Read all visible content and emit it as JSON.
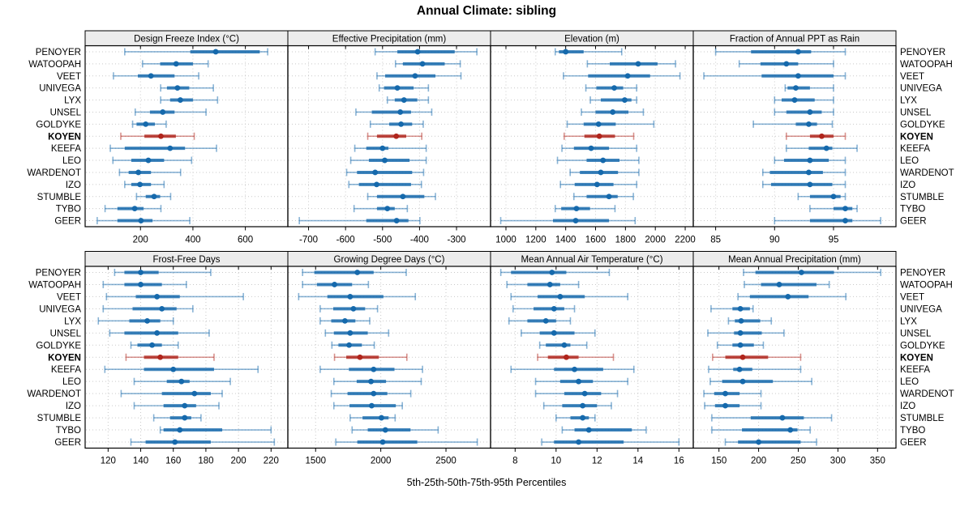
{
  "title": "Annual Climate: sibling",
  "footer": "5th-25th-50th-75th-95th Percentiles",
  "colors": {
    "normal": "#1569ac",
    "highlight": "#b0251c",
    "strip_bg": "#ececec",
    "grid": "#c9c9c9",
    "border": "#000000"
  },
  "chart_data": {
    "type": "dotplot",
    "title": "Annual Climate: sibling",
    "xlabel": "5th-25th-50th-75th-95th Percentiles",
    "percentile_labels": [
      "5th",
      "25th",
      "50th",
      "75th",
      "95th"
    ],
    "legend_position": "none",
    "grid": "dotted",
    "rows": [
      "PENOYER",
      "WATOOPAH",
      "VEET",
      "UNIVEGA",
      "LYX",
      "UNSEL",
      "GOLDYKE",
      "KOYEN",
      "KEEFA",
      "LEO",
      "WARDENOT",
      "IZO",
      "STUMBLE",
      "TYBO",
      "GEER"
    ],
    "highlight_row": "KOYEN",
    "panels": [
      {
        "title": "Design Freeze Index (°C)",
        "grid_row": 0,
        "grid_col": 0,
        "xlim": [
          -11,
          762
        ],
        "ticks": [
          200,
          400,
          600
        ],
        "series": [
          [
            140,
            390,
            487,
            655,
            685
          ],
          [
            208,
            275,
            336,
            400,
            458
          ],
          [
            97,
            190,
            240,
            330,
            422
          ],
          [
            277,
            301,
            341,
            386,
            478
          ],
          [
            277,
            313,
            352,
            400,
            494
          ],
          [
            180,
            236,
            285,
            330,
            450
          ],
          [
            170,
            185,
            220,
            255,
            298
          ],
          [
            125,
            215,
            278,
            335,
            405
          ],
          [
            85,
            140,
            313,
            370,
            490
          ],
          [
            95,
            165,
            230,
            290,
            395
          ],
          [
            120,
            155,
            192,
            240,
            353
          ],
          [
            140,
            165,
            198,
            240,
            290
          ],
          [
            185,
            220,
            252,
            275,
            315
          ],
          [
            65,
            112,
            178,
            212,
            278
          ],
          [
            35,
            112,
            202,
            246,
            388
          ]
        ]
      },
      {
        "title": "Effective Precipitation (mm)",
        "grid_row": 0,
        "grid_col": 1,
        "xlim": [
          -756,
          -208
        ],
        "ticks": [
          -700,
          -600,
          -500,
          -400,
          -300
        ],
        "series": [
          [
            -520,
            -460,
            -405,
            -305,
            -245
          ],
          [
            -465,
            -445,
            -392,
            -332,
            -290
          ],
          [
            -515,
            -493,
            -412,
            -357,
            -288
          ],
          [
            -509,
            -496,
            -460,
            -416,
            -376
          ],
          [
            -487,
            -467,
            -442,
            -406,
            -376
          ],
          [
            -572,
            -529,
            -452,
            -423,
            -367
          ],
          [
            -533,
            -482,
            -450,
            -420,
            -390
          ],
          [
            -540,
            -515,
            -463,
            -436,
            -394
          ],
          [
            -575,
            -544,
            -500,
            -484,
            -382
          ],
          [
            -586,
            -537,
            -494,
            -427,
            -382
          ],
          [
            -597,
            -569,
            -520,
            -420,
            -389
          ],
          [
            -591,
            -564,
            -516,
            -423,
            -395
          ],
          [
            -540,
            -515,
            -445,
            -387,
            -357
          ],
          [
            -577,
            -515,
            -487,
            -467,
            -433
          ],
          [
            -725,
            -544,
            -462,
            -430,
            -399
          ]
        ]
      },
      {
        "title": "Elevation (m)",
        "grid_row": 0,
        "grid_col": 2,
        "xlim": [
          897,
          2254
        ],
        "ticks": [
          1000,
          1200,
          1400,
          1600,
          1800,
          2000,
          2200
        ],
        "series": [
          [
            1330,
            1355,
            1400,
            1520,
            1775
          ],
          [
            1545,
            1695,
            1885,
            2015,
            2135
          ],
          [
            1385,
            1550,
            1815,
            1965,
            2165
          ],
          [
            1535,
            1605,
            1725,
            1785,
            1875
          ],
          [
            1565,
            1635,
            1795,
            1840,
            1875
          ],
          [
            1505,
            1600,
            1715,
            1820,
            1920
          ],
          [
            1410,
            1520,
            1620,
            1735,
            1990
          ],
          [
            1390,
            1525,
            1625,
            1730,
            1855
          ],
          [
            1375,
            1455,
            1570,
            1690,
            1875
          ],
          [
            1345,
            1540,
            1650,
            1760,
            1890
          ],
          [
            1430,
            1495,
            1635,
            1750,
            1890
          ],
          [
            1365,
            1460,
            1610,
            1720,
            1875
          ],
          [
            1455,
            1540,
            1690,
            1748,
            1853
          ],
          [
            1330,
            1370,
            1472,
            1563,
            1730
          ],
          [
            965,
            1315,
            1467,
            1690,
            1865
          ]
        ]
      },
      {
        "title": "Fraction of Annual PPT as Rain",
        "grid_row": 0,
        "grid_col": 3,
        "xlim": [
          83.1,
          100.3
        ],
        "ticks": [
          85,
          90,
          95
        ],
        "series": [
          [
            85.0,
            88.0,
            92.0,
            93.1,
            96.0
          ],
          [
            87.0,
            88.8,
            91.0,
            92.0,
            95.0
          ],
          [
            84.0,
            88.9,
            92.0,
            95.0,
            96.0
          ],
          [
            90.9,
            91.1,
            91.8,
            93.0,
            95.0
          ],
          [
            90.0,
            90.6,
            91.7,
            93.4,
            95.0
          ],
          [
            90.0,
            91.0,
            93.0,
            94.0,
            95.0
          ],
          [
            88.2,
            91.8,
            92.9,
            93.6,
            94.9
          ],
          [
            91.0,
            93.0,
            94.0,
            95.0,
            96.0
          ],
          [
            91.0,
            92.9,
            94.4,
            94.9,
            97.0
          ],
          [
            90.0,
            90.8,
            93.0,
            94.6,
            96.0
          ],
          [
            89.0,
            89.6,
            92.9,
            94.1,
            96.0
          ],
          [
            89.0,
            89.7,
            93.0,
            94.9,
            96.0
          ],
          [
            92.0,
            93.0,
            95.0,
            95.6,
            96.0
          ],
          [
            93.0,
            95.0,
            96.0,
            96.6,
            97.0
          ],
          [
            90.0,
            93.0,
            96.0,
            96.6,
            99.0
          ]
        ]
      },
      {
        "title": "Frost-Free Days",
        "grid_row": 1,
        "grid_col": 0,
        "xlim": [
          105.9,
          230.3
        ],
        "ticks": [
          120,
          140,
          160,
          180,
          200,
          220
        ],
        "series": [
          [
            124,
            130,
            140,
            151,
            183
          ],
          [
            117,
            130,
            140,
            153,
            168
          ],
          [
            119,
            137,
            150,
            164,
            203
          ],
          [
            117,
            135,
            153,
            162,
            172
          ],
          [
            114,
            133,
            144,
            152,
            160
          ],
          [
            121,
            130,
            150,
            163,
            182
          ],
          [
            134,
            138,
            147,
            153,
            163
          ],
          [
            131,
            142,
            152,
            163,
            185
          ],
          [
            118,
            142,
            160,
            185,
            212
          ],
          [
            136,
            156,
            165,
            170,
            195
          ],
          [
            128,
            153,
            173,
            183,
            190
          ],
          [
            136,
            154,
            167,
            174,
            188
          ],
          [
            148,
            158,
            167,
            171,
            177
          ],
          [
            152,
            154,
            164,
            190,
            220
          ],
          [
            134,
            143,
            161,
            183,
            222
          ]
        ]
      },
      {
        "title": "Growing Degree Days (°C)",
        "grid_row": 1,
        "grid_col": 1,
        "xlim": [
          1287,
          2842
        ],
        "ticks": [
          1500,
          2000,
          2500
        ],
        "series": [
          [
            1400,
            1490,
            1820,
            1945,
            2195
          ],
          [
            1400,
            1510,
            1645,
            1780,
            1905
          ],
          [
            1370,
            1590,
            1765,
            2020,
            2265
          ],
          [
            1535,
            1635,
            1790,
            1880,
            1975
          ],
          [
            1535,
            1620,
            1725,
            1805,
            1915
          ],
          [
            1575,
            1640,
            1765,
            1900,
            2060
          ],
          [
            1625,
            1675,
            1757,
            1855,
            1950
          ],
          [
            1645,
            1735,
            1840,
            1985,
            2200
          ],
          [
            1535,
            1755,
            1945,
            2105,
            2320
          ],
          [
            1640,
            1815,
            1925,
            2040,
            2310
          ],
          [
            1620,
            1745,
            1945,
            2050,
            2230
          ],
          [
            1640,
            1760,
            1930,
            2115,
            2165
          ],
          [
            1765,
            1860,
            2005,
            2060,
            2110
          ],
          [
            1780,
            1900,
            2035,
            2228,
            2440
          ],
          [
            1655,
            1820,
            2015,
            2280,
            2740
          ]
        ]
      },
      {
        "title": "Mean Annual Air Temperature (°C)",
        "grid_row": 1,
        "grid_col": 2,
        "xlim": [
          6.8,
          16.7
        ],
        "ticks": [
          8,
          10,
          12,
          14,
          16
        ],
        "series": [
          [
            7.3,
            7.8,
            9.8,
            10.5,
            12.6
          ],
          [
            7.6,
            8.6,
            9.7,
            10.2,
            11.1
          ],
          [
            7.8,
            9.1,
            10.2,
            11.4,
            13.5
          ],
          [
            7.9,
            8.9,
            9.9,
            10.4,
            10.9
          ],
          [
            7.7,
            8.6,
            9.5,
            10.0,
            10.7
          ],
          [
            8.3,
            9.2,
            9.9,
            10.9,
            11.9
          ],
          [
            9.2,
            9.5,
            10.4,
            10.7,
            11.5
          ],
          [
            9.1,
            9.6,
            10.5,
            11.1,
            12.8
          ],
          [
            7.8,
            9.9,
            10.9,
            12.3,
            13.8
          ],
          [
            9.0,
            10.2,
            11.1,
            11.8,
            13.5
          ],
          [
            9.0,
            10.4,
            11.4,
            12.2,
            13.0
          ],
          [
            9.4,
            10.3,
            11.3,
            12.0,
            12.7
          ],
          [
            10.0,
            10.7,
            11.3,
            11.6,
            11.9
          ],
          [
            10.3,
            10.9,
            11.6,
            13.7,
            14.4
          ],
          [
            9.3,
            9.9,
            11.1,
            13.3,
            16.0
          ]
        ]
      },
      {
        "title": "Mean Annual Precipitation (mm)",
        "grid_row": 1,
        "grid_col": 3,
        "xlim": [
          117.6,
          373.2
        ],
        "ticks": [
          150,
          200,
          250,
          300,
          350
        ],
        "series": [
          [
            181,
            196,
            254,
            295,
            354
          ],
          [
            182,
            203,
            226,
            273,
            289
          ],
          [
            174,
            189,
            237,
            263,
            310
          ],
          [
            140,
            167,
            177,
            189,
            193
          ],
          [
            162,
            170,
            178,
            202,
            216
          ],
          [
            136,
            169,
            177,
            204,
            232
          ],
          [
            148,
            167,
            177,
            194,
            206
          ],
          [
            142,
            158,
            180,
            212,
            253
          ],
          [
            137,
            168,
            176,
            192,
            253
          ],
          [
            139,
            154,
            180,
            218,
            267
          ],
          [
            131,
            144,
            158,
            176,
            203
          ],
          [
            132,
            145,
            158,
            176,
            203
          ],
          [
            141,
            190,
            230,
            257,
            292
          ],
          [
            141,
            179,
            240,
            249,
            265
          ],
          [
            158,
            174,
            200,
            253,
            273
          ]
        ]
      }
    ]
  }
}
